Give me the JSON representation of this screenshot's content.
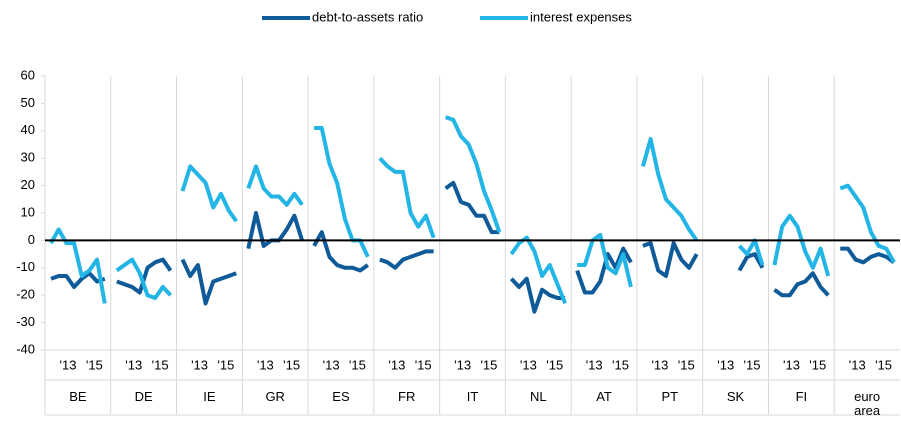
{
  "chart_data": {
    "type": "line",
    "groups": [
      "BE",
      "DE",
      "IE",
      "GR",
      "ES",
      "FR",
      "IT",
      "NL",
      "AT",
      "PT",
      "SK",
      "FI",
      "euro area"
    ],
    "subticks": [
      "'13",
      "'15"
    ],
    "ylim": [
      -40,
      60
    ],
    "yticks": [
      -40,
      -30,
      -20,
      -10,
      0,
      10,
      20,
      30,
      40,
      50,
      60
    ],
    "series": [
      {
        "name": "debt-to-assets ratio",
        "color": "#0f5a98",
        "values": [
          [
            -14,
            -13,
            -13,
            -17,
            -14,
            -12,
            -15,
            -14
          ],
          [
            -15,
            -16,
            -17,
            -19,
            -10,
            -8,
            -7,
            -11
          ],
          [
            -7,
            -13,
            -9,
            -23,
            -15,
            -14,
            -13,
            -12
          ],
          [
            -3,
            10,
            -2,
            0,
            0,
            4,
            9,
            0
          ],
          [
            -2,
            3,
            -6,
            -9,
            -10,
            -10,
            -11,
            -9
          ],
          [
            -7,
            -8,
            -10,
            -7,
            -6,
            -5,
            -4,
            -4
          ],
          [
            19,
            21,
            14,
            13,
            9,
            9,
            3,
            3
          ],
          [
            -14,
            -17,
            -14,
            -26,
            -18,
            -20,
            -21,
            -21
          ],
          [
            -11,
            -19,
            -19,
            -15,
            -5,
            -10,
            -3,
            -8
          ],
          [
            -2,
            -1,
            -11,
            -13,
            -1,
            -7,
            -10,
            -5
          ],
          [
            null,
            null,
            null,
            null,
            -11,
            -6,
            -5,
            -10
          ],
          [
            -18,
            -20,
            -20,
            -16,
            -15,
            -12,
            -17,
            -20
          ],
          [
            -3,
            -3,
            -7,
            -8,
            -6,
            -5,
            -6,
            -8
          ]
        ]
      },
      {
        "name": "interest expenses",
        "color": "#22b5e6",
        "values": [
          [
            -1,
            4,
            -1,
            -1,
            -13,
            -11,
            -7,
            -23
          ],
          [
            -11,
            -9,
            -7,
            -12,
            -20,
            -21,
            -17,
            -20
          ],
          [
            18,
            27,
            24,
            21,
            12,
            17,
            11,
            7
          ],
          [
            19,
            27,
            19,
            16,
            16,
            13,
            17,
            13
          ],
          [
            41,
            41,
            28,
            21,
            8,
            0,
            0,
            -6
          ],
          [
            30,
            27,
            25,
            25,
            10,
            5,
            9,
            1
          ],
          [
            45,
            44,
            38,
            35,
            28,
            18,
            11,
            3
          ],
          [
            -5,
            -1,
            1,
            -4,
            -13,
            -9,
            -16,
            -23
          ],
          [
            -9,
            -9,
            0,
            2,
            -10,
            -12,
            -5,
            -17
          ],
          [
            27,
            37,
            24,
            15,
            12,
            9,
            4,
            0
          ],
          [
            null,
            null,
            null,
            null,
            -2,
            -5,
            0,
            -9
          ],
          [
            -9,
            5,
            9,
            5,
            -4,
            -10,
            -3,
            -13
          ],
          [
            19,
            20,
            16,
            12,
            3,
            -2,
            -3,
            -8
          ]
        ]
      }
    ]
  }
}
